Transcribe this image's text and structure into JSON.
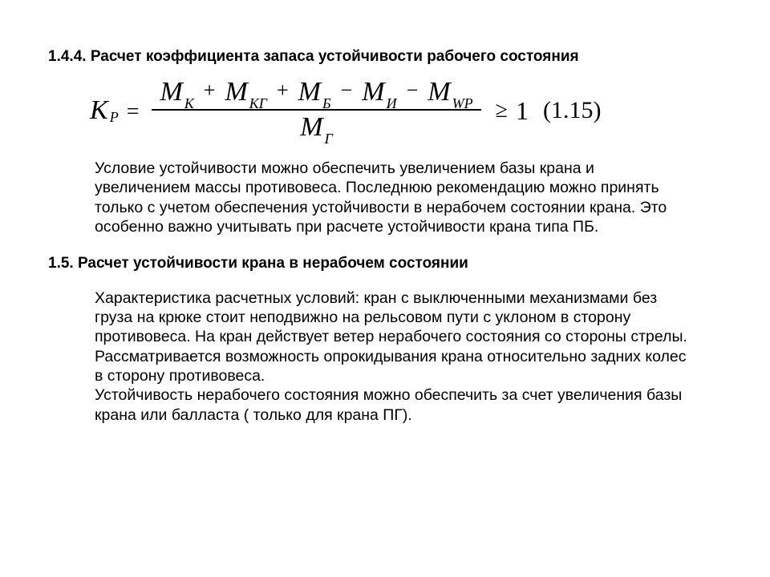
{
  "section144": {
    "number": "1.4.4.",
    "title": "Расчет коэффициента запаса устойчивости рабочего состояния"
  },
  "formula": {
    "lhs_symbol": "K",
    "lhs_sub": "Р",
    "numerator": [
      {
        "sym": "M",
        "sub": "К"
      },
      {
        "op": "+"
      },
      {
        "sym": "M",
        "sub": "КГ"
      },
      {
        "op": "+"
      },
      {
        "sym": "M",
        "sub": "Б"
      },
      {
        "op": "−"
      },
      {
        "sym": "M",
        "sub": "И"
      },
      {
        "op": "−"
      },
      {
        "sym": "M",
        "sub": "WP"
      }
    ],
    "denominator": {
      "sym": "M",
      "sub": "Г"
    },
    "relation": "≥",
    "rhs": "1",
    "eq_number": "(1.15)"
  },
  "paragraph1": "Условие устойчивости можно обеспечить увеличением базы крана и увеличением массы противовеса. Последнюю рекомендацию можно принять только с учетом обеспечения устойчивости в нерабочем состоянии крана. Это особенно важно учитывать при расчете устойчивости крана типа ПБ.",
  "section15": {
    "number": "1.5.",
    "title": "Расчет устойчивости крана в нерабочем состоянии"
  },
  "paragraph2": "Характеристика расчетных условий: кран с выключенными механизмами без груза на крюке стоит неподвижно на рельсовом пути с уклоном в сторону противовеса. На кран действует ветер нерабочего состояния со стороны стрелы. Рассматривается возможность опрокидывания крана относительно задних колес в сторону противовеса.\nУстойчивость нерабочего состояния можно обеспечить за счет увеличения базы крана или балласта ( только для крана ПГ)."
}
